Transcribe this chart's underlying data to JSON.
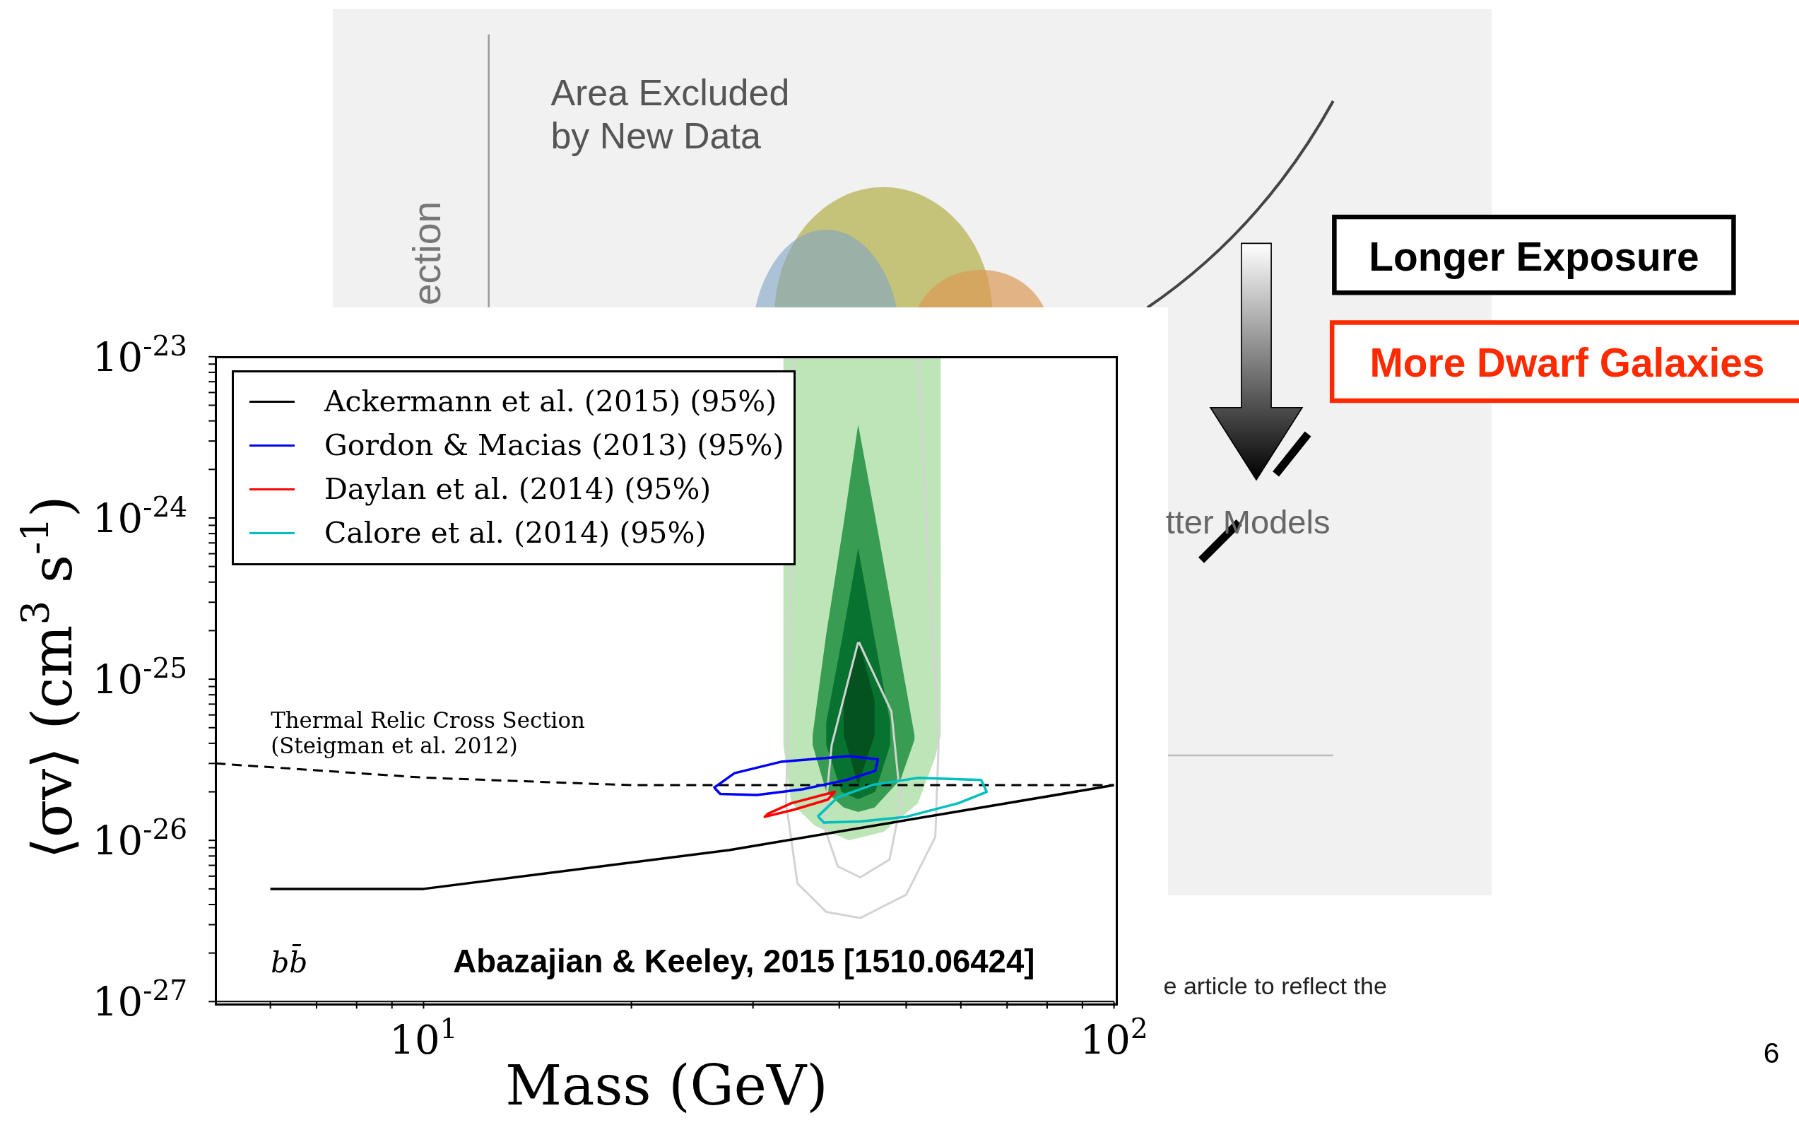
{
  "chart_data": {
    "type": "line",
    "log": "xy",
    "xlabel": "Mass (GeV)",
    "ylabel": "⟨σv⟩ (cm$^{3}$ s$^{-1}$)",
    "legend": "top left",
    "xlim": [
      5,
      100
    ],
    "ylim": [
      1e-27,
      1e-23
    ],
    "xticks": [
      {
        "value": 6,
        "label": null
      },
      {
        "value": 7,
        "label": null
      },
      {
        "value": 8,
        "label": null
      },
      {
        "value": 9,
        "label": null
      },
      {
        "value": 10,
        "label": "10$^{1}$"
      },
      {
        "value": 20,
        "label": null
      },
      {
        "value": 30,
        "label": null
      },
      {
        "value": 40,
        "label": null
      },
      {
        "value": 50,
        "label": null
      },
      {
        "value": 60,
        "label": null
      },
      {
        "value": 70,
        "label": null
      },
      {
        "value": 80,
        "label": null
      },
      {
        "value": 90,
        "label": null
      },
      {
        "value": 100,
        "label": "10$^{2}$"
      }
    ],
    "yticks": [
      {
        "value": 1e-27,
        "label": "10$^{-27}$"
      },
      {
        "value": 2e-27,
        "label": null
      },
      {
        "value": 3e-27,
        "label": null
      },
      {
        "value": 4e-27,
        "label": null
      },
      {
        "value": 5e-27,
        "label": null
      },
      {
        "value": 6e-27,
        "label": null
      },
      {
        "value": 7e-27,
        "label": null
      },
      {
        "value": 8e-27,
        "label": null
      },
      {
        "value": 9e-27,
        "label": null
      },
      {
        "value": 1e-26,
        "label": "10$^{-26}$"
      },
      {
        "value": 2e-26,
        "label": null
      },
      {
        "value": 3e-26,
        "label": null
      },
      {
        "value": 4e-26,
        "label": null
      },
      {
        "value": 5e-26,
        "label": null
      },
      {
        "value": 6e-26,
        "label": null
      },
      {
        "value": 7e-26,
        "label": null
      },
      {
        "value": 8e-26,
        "label": null
      },
      {
        "value": 9e-26,
        "label": null
      },
      {
        "value": 1e-25,
        "label": "10$^{-25}$"
      },
      {
        "value": 2e-25,
        "label": null
      },
      {
        "value": 3e-25,
        "label": null
      },
      {
        "value": 4e-25,
        "label": null
      },
      {
        "value": 5e-25,
        "label": null
      },
      {
        "value": 6e-25,
        "label": null
      },
      {
        "value": 7e-25,
        "label": null
      },
      {
        "value": 8e-25,
        "label": null
      },
      {
        "value": 9e-25,
        "label": null
      },
      {
        "value": 1e-24,
        "label": "10$^{-24}$"
      },
      {
        "value": 2e-24,
        "label": null
      },
      {
        "value": 3e-24,
        "label": null
      },
      {
        "value": 4e-24,
        "label": null
      },
      {
        "value": 5e-24,
        "label": null
      },
      {
        "value": 6e-24,
        "label": null
      },
      {
        "value": 7e-24,
        "label": null
      },
      {
        "value": 8e-24,
        "label": null
      },
      {
        "value": 9e-24,
        "label": null
      },
      {
        "value": 1e-23,
        "label": "10$^{-23}$"
      }
    ],
    "series": [
      {
        "type": "line",
        "color": "#bde5b7",
        "x": [
          33.2,
          34.1,
          36.9,
          41.3,
          46.4,
          52.0,
          55.1,
          56.1
        ],
        "values": [
          null,
          null,
          null,
          null,
          null,
          null,
          null,
          null
        ],
        "lower": [
          3.9e-26,
          1.7e-26,
          1.23e-26,
          1e-26,
          1.13e-26,
          1.7e-26,
          3.3e-26,
          4.5e-26
        ],
        "upper": [
          1e-23,
          1e-23,
          1e-23,
          1e-23,
          1e-23,
          1e-23,
          1e-23,
          1e-23
        ]
      },
      {
        "type": "line",
        "color": "#389c53",
        "x": [
          36.6,
          38.3,
          40.6,
          42.6,
          45.0,
          49.1,
          51.4
        ],
        "values": [
          null,
          null,
          null,
          null,
          null,
          null,
          null
        ],
        "lower": [
          3.9e-26,
          2e-26,
          1.6e-26,
          1.5e-26,
          1.6e-26,
          2.4e-26,
          4.2e-26
        ],
        "upper": [
          4.5e-26,
          1.9e-25,
          9.3e-25,
          3.8e-24,
          1.07e-24,
          1.35e-25,
          4.5e-26
        ]
      },
      {
        "type": "line",
        "color": "#087330",
        "x": [
          38.3,
          40.3,
          42.6,
          45.1,
          47.4
        ],
        "values": [
          null,
          null,
          null,
          null,
          null
        ],
        "lower": [
          3.9e-26,
          2e-26,
          1.8e-26,
          2e-26,
          3.9e-26
        ],
        "upper": [
          5.4e-26,
          1.7e-25,
          6.5e-25,
          1.7e-25,
          5.4e-26
        ]
      },
      {
        "type": "line",
        "color": "#03521f",
        "x": [
          40.6,
          42.6,
          45.0
        ],
        "values": [
          null,
          null,
          null
        ],
        "lower": [
          4.5e-26,
          2.2e-26,
          4.5e-26
        ],
        "upper": [
          7.4e-26,
          1.8e-25,
          7.4e-26
        ]
      },
      {
        "type": "line",
        "color": "#d3d3d3",
        "x": [
          34.4,
          34.1,
          33.5,
          34.8,
          38.3,
          42.9,
          50.0,
          55.1,
          55.7,
          54.0,
          52.0
        ],
        "values": [
          1e-23,
          4.5e-25,
          1.7e-26,
          5.4e-27,
          3.6e-27,
          3.3e-27,
          4.6e-27,
          1.05e-26,
          3.9e-26,
          4.5e-25,
          1e-23
        ]
      },
      {
        "type": "line",
        "color": "#d3d3d3",
        "x": [
          42.6,
          39.0,
          38.0,
          39.8,
          42.9,
          47.3,
          49.1,
          47.6,
          42.7
        ],
        "values": [
          1.7e-25,
          3.9e-26,
          1.23e-26,
          6.9e-27,
          5.9e-27,
          7.6e-27,
          1.7e-26,
          6.3e-26,
          1.7e-25
        ]
      },
      {
        "type": "line",
        "line_style": "dashed",
        "color": "#000000",
        "x": [
          5,
          10,
          20,
          40,
          100
        ],
        "values": [
          3e-26,
          2.45e-26,
          2.2e-26,
          2.2e-26,
          2.2e-26
        ]
      },
      {
        "name": "Ackermann et al. (2015) (95%)",
        "color": "#000000",
        "x": [
          6,
          10,
          27.7,
          100
        ],
        "values": [
          5e-27,
          5e-27,
          8.7e-27,
          2.2e-26
        ]
      },
      {
        "name": "Gordon & Macias (2013) (95%)",
        "color": "#0000ff",
        "x": [
          26.3,
          28.2,
          32.9,
          41.3,
          45.5,
          45.1,
          41.0,
          35.5,
          30.4,
          26.9,
          26.4
        ],
        "values": [
          2.11e-26,
          2.61e-26,
          3.07e-26,
          3.33e-26,
          3.18e-26,
          2.7e-26,
          2.37e-26,
          2.08e-26,
          1.91e-26,
          1.94e-26,
          2.11e-26
        ]
      },
      {
        "name": "Daylan et al. (2014) (95%)",
        "color": "#ff0000",
        "x": [
          31.4,
          34.1,
          39.4,
          38.5,
          34.4,
          31.2,
          31.6
        ],
        "values": [
          1.45e-26,
          1.7e-26,
          2e-26,
          1.79e-26,
          1.55e-26,
          1.4e-26,
          1.47e-26
        ]
      },
      {
        "name": "Calore et al. (2014) (95%)",
        "color": "#00bfbf",
        "x": [
          37.2,
          39.8,
          44.7,
          52.1,
          64.2,
          65.4,
          59.5,
          50.0,
          42.9,
          38.0,
          37.3
        ],
        "values": [
          1.4e-26,
          1.85e-26,
          2.21e-26,
          2.44e-26,
          2.37e-26,
          2e-26,
          1.7e-26,
          1.4e-26,
          1.31e-26,
          1.29e-26,
          1.4e-26
        ]
      }
    ],
    "annotations": [
      "Thermal Relic Cross Section\n(Steigman et al. 2012)",
      "bb̄",
      "Abazajian & Keeley, 2015 [1510.06424]",
      "Area Excluded\nby New Data",
      "ection",
      "tter Models",
      "e article to reflect the",
      "Longer Exposure",
      "More Dwarf Galaxies",
      "6"
    ]
  }
}
